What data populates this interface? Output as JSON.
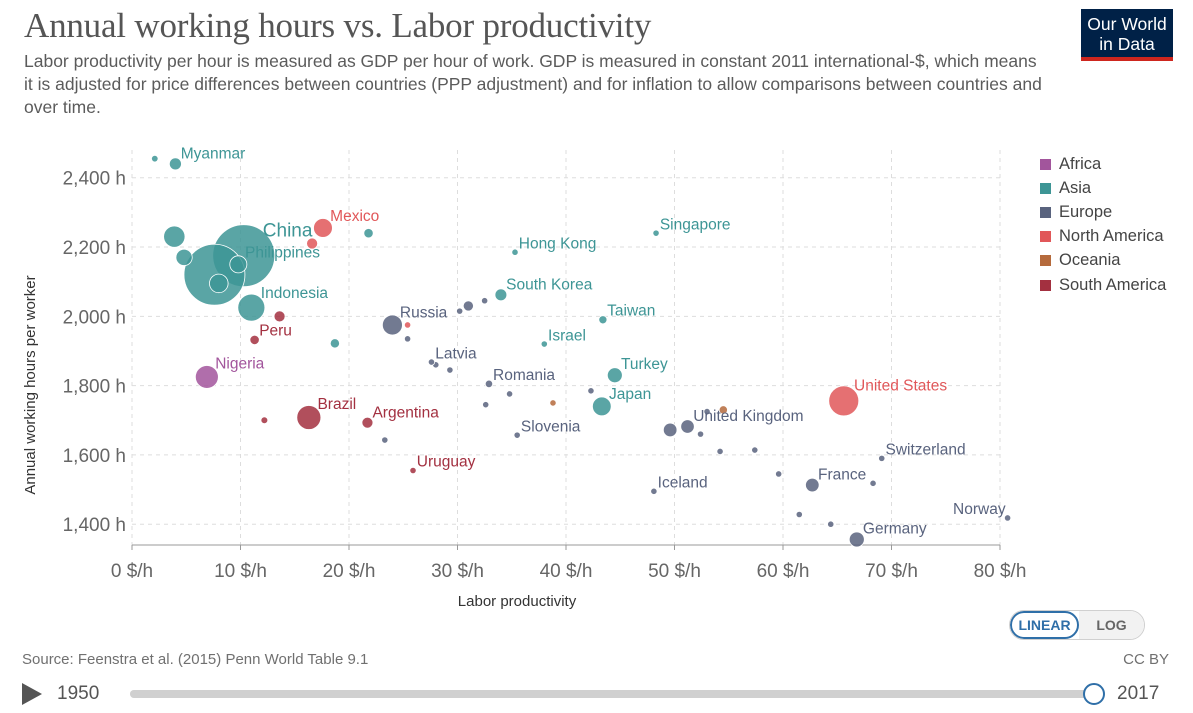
{
  "title": "Annual working hours vs. Labor productivity",
  "subtitle": "Labor productivity per hour is measured as GDP per hour of work. GDP is measured in constant 2011 international-$, which means it is adjusted for price differences between countries (PPP adjustment) and for inflation to allow comparisons between countries and over time.",
  "logo": {
    "line1": "Our World",
    "line2": "in Data"
  },
  "source": "Source: Feenstra et al. (2015) Penn World Table 9.1",
  "license": "CC BY",
  "scale_toggle": {
    "linear": "LINEAR",
    "log": "LOG",
    "selected": "LINEAR"
  },
  "timeline": {
    "start_year": "1950",
    "end_year": "2017",
    "selected_fraction": 1.0
  },
  "colors": {
    "Africa": "#a2559c",
    "Asia": "#3d9595",
    "Europe": "#59637e",
    "North America": "#e15759",
    "Oceania": "#b56a3c",
    "South America": "#a33040"
  },
  "chart_data": {
    "type": "scatter",
    "xlabel": "Labor productivity",
    "ylabel": "Annual working hours per worker",
    "xlim": [
      0,
      80
    ],
    "ylim": [
      1340,
      2480
    ],
    "x_ticks": [
      0,
      10,
      20,
      30,
      40,
      50,
      60,
      70,
      80
    ],
    "x_tick_labels": [
      "0 $/h",
      "10 $/h",
      "20 $/h",
      "30 $/h",
      "40 $/h",
      "50 $/h",
      "60 $/h",
      "70 $/h",
      "80 $/h"
    ],
    "y_ticks": [
      1400,
      1600,
      1800,
      2000,
      2200,
      2400
    ],
    "y_tick_labels": [
      "1,400 h",
      "1,600 h",
      "1,800 h",
      "2,000 h",
      "2,200 h",
      "2,400 h"
    ],
    "grid": true,
    "legend_position": "right",
    "legend": [
      "Africa",
      "Asia",
      "Europe",
      "North America",
      "Oceania",
      "South America"
    ],
    "points": [
      {
        "label": "China",
        "x": 10.3,
        "y": 2175,
        "region": "Asia",
        "size": 1386
      },
      {
        "label": "",
        "x": 7.6,
        "y": 2120,
        "region": "Asia",
        "size": 1339
      },
      {
        "label": "Philippines",
        "x": 9.8,
        "y": 2150,
        "region": "Asia",
        "size": 105
      },
      {
        "label": "Indonesia",
        "x": 11.0,
        "y": 2025,
        "region": "Asia",
        "size": 264
      },
      {
        "label": "Myanmar",
        "x": 4.0,
        "y": 2440,
        "region": "Asia",
        "size": 53
      },
      {
        "label": "",
        "x": 2.1,
        "y": 2455,
        "region": "Asia",
        "size": 16
      },
      {
        "label": "",
        "x": 3.9,
        "y": 2230,
        "region": "Asia",
        "size": 165
      },
      {
        "label": "",
        "x": 4.8,
        "y": 2170,
        "region": "Asia",
        "size": 96
      },
      {
        "label": "",
        "x": 8.0,
        "y": 2095,
        "region": "Asia",
        "size": 125
      },
      {
        "label": "Mexico",
        "x": 17.6,
        "y": 2255,
        "region": "North America",
        "size": 129
      },
      {
        "label": "",
        "x": 16.6,
        "y": 2210,
        "region": "North America",
        "size": 44
      },
      {
        "label": "",
        "x": 21.8,
        "y": 2240,
        "region": "Asia",
        "size": 32
      },
      {
        "label": "Hong Kong",
        "x": 35.3,
        "y": 2185,
        "region": "Asia",
        "size": 7
      },
      {
        "label": "Singapore",
        "x": 48.3,
        "y": 2240,
        "region": "Asia",
        "size": 6
      },
      {
        "label": "South Korea",
        "x": 34.0,
        "y": 2062,
        "region": "Asia",
        "size": 51
      },
      {
        "label": "Taiwan",
        "x": 43.4,
        "y": 1990,
        "region": "Asia",
        "size": 24
      },
      {
        "label": "Israel",
        "x": 38.0,
        "y": 1920,
        "region": "Asia",
        "size": 9
      },
      {
        "label": "Turkey",
        "x": 44.5,
        "y": 1830,
        "region": "Asia",
        "size": 81
      },
      {
        "label": "Japan",
        "x": 43.3,
        "y": 1740,
        "region": "Asia",
        "size": 127
      },
      {
        "label": "",
        "x": 18.7,
        "y": 1922,
        "region": "Asia",
        "size": 31
      },
      {
        "label": "Nigeria",
        "x": 6.9,
        "y": 1825,
        "region": "Africa",
        "size": 191
      },
      {
        "label": "Peru",
        "x": 11.3,
        "y": 1932,
        "region": "South America",
        "size": 32
      },
      {
        "label": "",
        "x": 13.6,
        "y": 2000,
        "region": "South America",
        "size": 44
      },
      {
        "label": "Brazil",
        "x": 16.3,
        "y": 1708,
        "region": "South America",
        "size": 209
      },
      {
        "label": "",
        "x": 12.2,
        "y": 1700,
        "region": "South America",
        "size": 17
      },
      {
        "label": "Argentina",
        "x": 21.7,
        "y": 1693,
        "region": "South America",
        "size": 44
      },
      {
        "label": "Uruguay",
        "x": 25.9,
        "y": 1555,
        "region": "South America",
        "size": 3
      },
      {
        "label": "Russia",
        "x": 24.0,
        "y": 1975,
        "region": "Europe",
        "size": 145
      },
      {
        "label": "",
        "x": 25.4,
        "y": 1975,
        "region": "North America",
        "size": 8
      },
      {
        "label": "",
        "x": 25.4,
        "y": 1935,
        "region": "Europe",
        "size": 10
      },
      {
        "label": "",
        "x": 30.2,
        "y": 2015,
        "region": "Europe",
        "size": 9
      },
      {
        "label": "",
        "x": 31.0,
        "y": 2030,
        "region": "Europe",
        "size": 38
      },
      {
        "label": "",
        "x": 32.5,
        "y": 2045,
        "region": "Europe",
        "size": 4
      },
      {
        "label": "Latvia",
        "x": 27.6,
        "y": 1868,
        "region": "Europe",
        "size": 2
      },
      {
        "label": "",
        "x": 28.0,
        "y": 1860,
        "region": "Europe",
        "size": 4
      },
      {
        "label": "",
        "x": 29.3,
        "y": 1845,
        "region": "Europe",
        "size": 2
      },
      {
        "label": "Romania",
        "x": 32.9,
        "y": 1805,
        "region": "Europe",
        "size": 20
      },
      {
        "label": "",
        "x": 34.8,
        "y": 1776,
        "region": "Europe",
        "size": 7
      },
      {
        "label": "",
        "x": 32.6,
        "y": 1745,
        "region": "Europe",
        "size": 7
      },
      {
        "label": "Slovenia",
        "x": 35.5,
        "y": 1657,
        "region": "Europe",
        "size": 2
      },
      {
        "label": "",
        "x": 23.3,
        "y": 1643,
        "region": "Europe",
        "size": 7
      },
      {
        "label": "",
        "x": 38.8,
        "y": 1750,
        "region": "Oceania",
        "size": 5
      },
      {
        "label": "",
        "x": 42.3,
        "y": 1785,
        "region": "Europe",
        "size": 2
      },
      {
        "label": "United Kingdom",
        "x": 51.2,
        "y": 1682,
        "region": "Europe",
        "size": 66
      },
      {
        "label": "",
        "x": 49.6,
        "y": 1672,
        "region": "Europe",
        "size": 67
      },
      {
        "label": "",
        "x": 53.0,
        "y": 1725,
        "region": "Europe",
        "size": 11
      },
      {
        "label": "",
        "x": 54.5,
        "y": 1730,
        "region": "Oceania",
        "size": 25
      },
      {
        "label": "",
        "x": 52.4,
        "y": 1660,
        "region": "Europe",
        "size": 10
      },
      {
        "label": "",
        "x": 54.2,
        "y": 1610,
        "region": "Europe",
        "size": 9
      },
      {
        "label": "",
        "x": 57.4,
        "y": 1614,
        "region": "Europe",
        "size": 6
      },
      {
        "label": "Iceland",
        "x": 48.1,
        "y": 1495,
        "region": "Europe",
        "size": 0.3
      },
      {
        "label": "United States",
        "x": 65.6,
        "y": 1756,
        "region": "North America",
        "size": 325
      },
      {
        "label": "Switzerland",
        "x": 69.1,
        "y": 1590,
        "region": "Europe",
        "size": 8
      },
      {
        "label": "France",
        "x": 62.7,
        "y": 1513,
        "region": "Europe",
        "size": 67
      },
      {
        "label": "",
        "x": 59.6,
        "y": 1545,
        "region": "Europe",
        "size": 10
      },
      {
        "label": "",
        "x": 68.3,
        "y": 1518,
        "region": "Europe",
        "size": 5
      },
      {
        "label": "",
        "x": 61.5,
        "y": 1428,
        "region": "Europe",
        "size": 11
      },
      {
        "label": "",
        "x": 64.4,
        "y": 1400,
        "region": "Europe",
        "size": 6
      },
      {
        "label": "Germany",
        "x": 66.8,
        "y": 1356,
        "region": "Europe",
        "size": 82
      },
      {
        "label": "Norway",
        "x": 80.7,
        "y": 1418,
        "region": "Europe",
        "size": 5
      }
    ]
  }
}
